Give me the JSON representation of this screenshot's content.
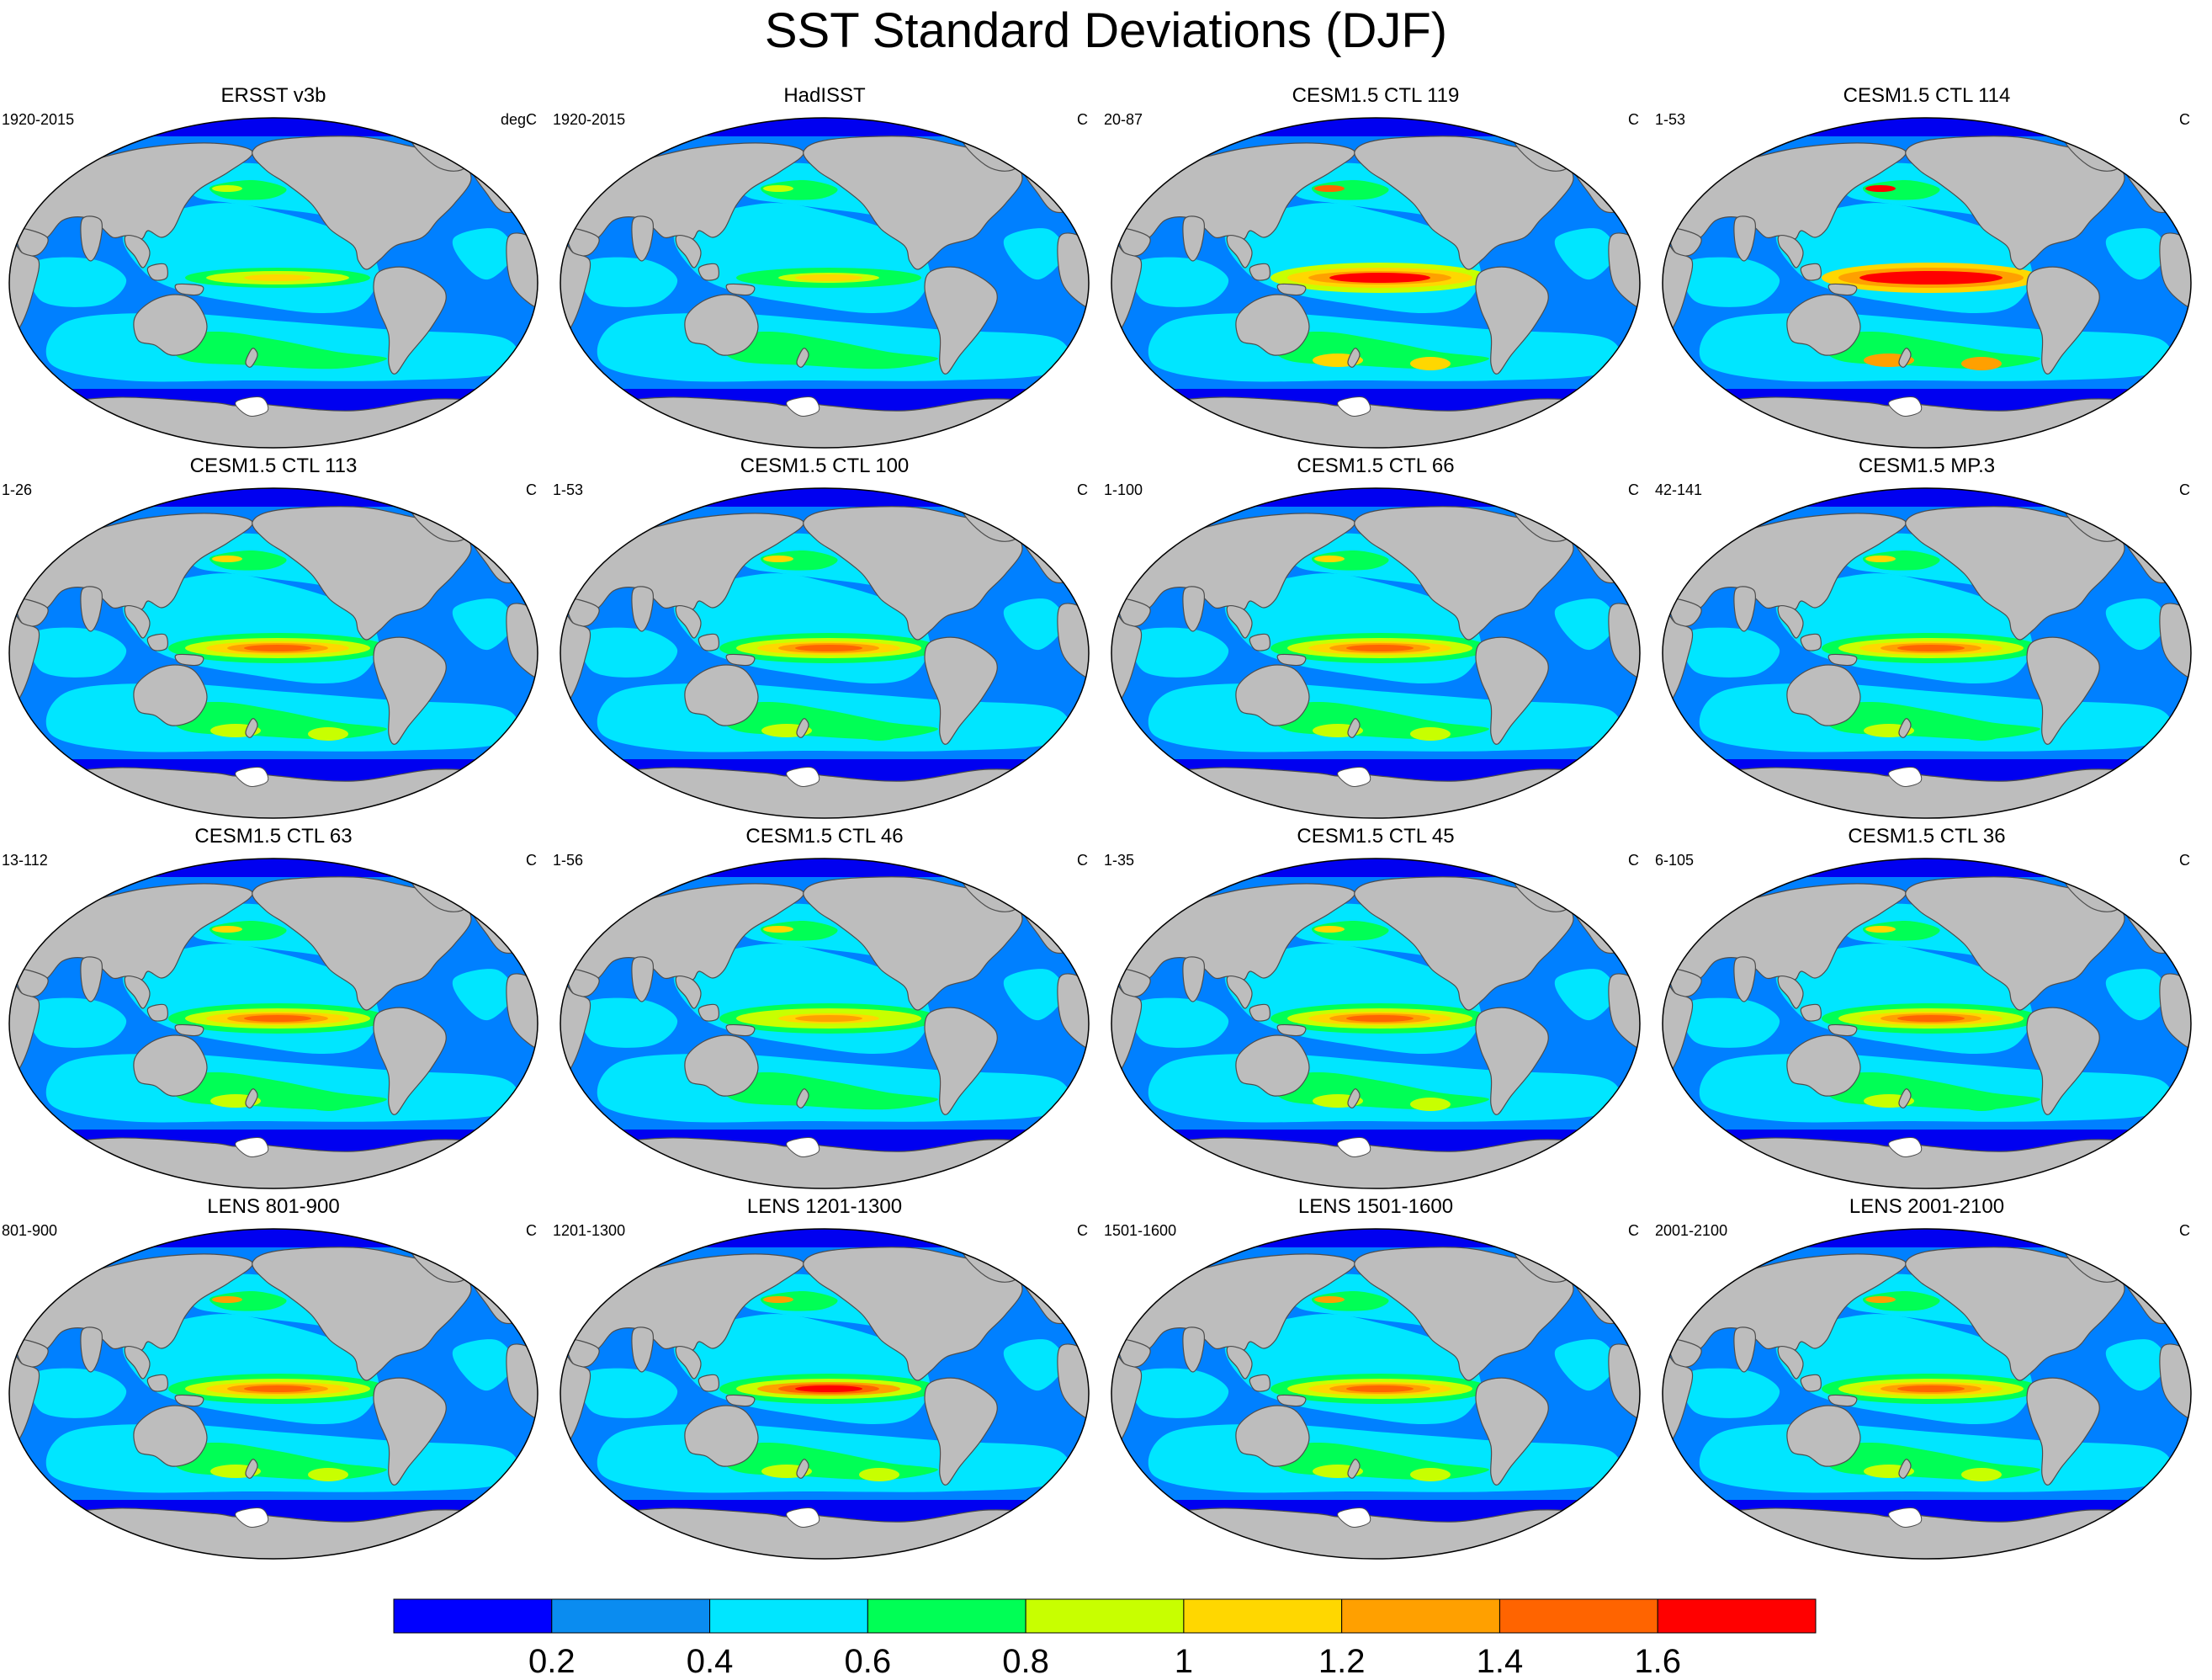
{
  "title": "SST Standard Deviations (DJF)",
  "colors": {
    "ocean_base": "#0080ff",
    "land": "#bdbdbd",
    "coast": "#4d4d4d",
    "sea_ice": "#0000f0"
  },
  "panels": [
    {
      "title": "ERSST v3b",
      "left": "1920-2015",
      "right": "degC",
      "amp": 0.75
    },
    {
      "title": "HadISST",
      "left": "1920-2015",
      "right": "C",
      "amp": 0.7
    },
    {
      "title": "CESM1.5 CTL 119",
      "left": "20-87",
      "right": "C",
      "amp": 1.25
    },
    {
      "title": "CESM1.5 CTL 114",
      "left": "1-53",
      "right": "C",
      "amp": 1.5
    },
    {
      "title": "CESM1.5 CTL 113",
      "left": "1-26",
      "right": "C",
      "amp": 1.0
    },
    {
      "title": "CESM1.5 CTL 100",
      "left": "1-53",
      "right": "C",
      "amp": 0.95
    },
    {
      "title": "CESM1.5 CTL 66",
      "left": "1-100",
      "right": "C",
      "amp": 1.0
    },
    {
      "title": "CESM1.5 MP.3",
      "left": "42-141",
      "right": "C",
      "amp": 0.95
    },
    {
      "title": "CESM1.5 CTL 63",
      "left": "13-112",
      "right": "C",
      "amp": 0.95
    },
    {
      "title": "CESM1.5 CTL 46",
      "left": "1-56",
      "right": "C",
      "amp": 0.9
    },
    {
      "title": "CESM1.5 CTL 45",
      "left": "1-35",
      "right": "C",
      "amp": 1.0
    },
    {
      "title": "CESM1.5 CTL 36",
      "left": "6-105",
      "right": "C",
      "amp": 0.95
    },
    {
      "title": "LENS 801-900",
      "left": "801-900",
      "right": "C",
      "amp": 1.05
    },
    {
      "title": "LENS 1201-1300",
      "left": "1201-1300",
      "right": "C",
      "amp": 1.1
    },
    {
      "title": "LENS 1501-1600",
      "left": "1501-1600",
      "right": "C",
      "amp": 1.05
    },
    {
      "title": "LENS 2001-2100",
      "left": "2001-2100",
      "right": "C",
      "amp": 1.05
    }
  ],
  "colorbar": {
    "colors": [
      "#0000ff",
      "#0a8cf0",
      "#00e6ff",
      "#00ff55",
      "#c8ff00",
      "#ffd700",
      "#ffa000",
      "#ff6400",
      "#ff0000"
    ],
    "labels": [
      "0.2",
      "0.4",
      "0.6",
      "0.8",
      "1",
      "1.2",
      "1.4",
      "1.6"
    ]
  }
}
